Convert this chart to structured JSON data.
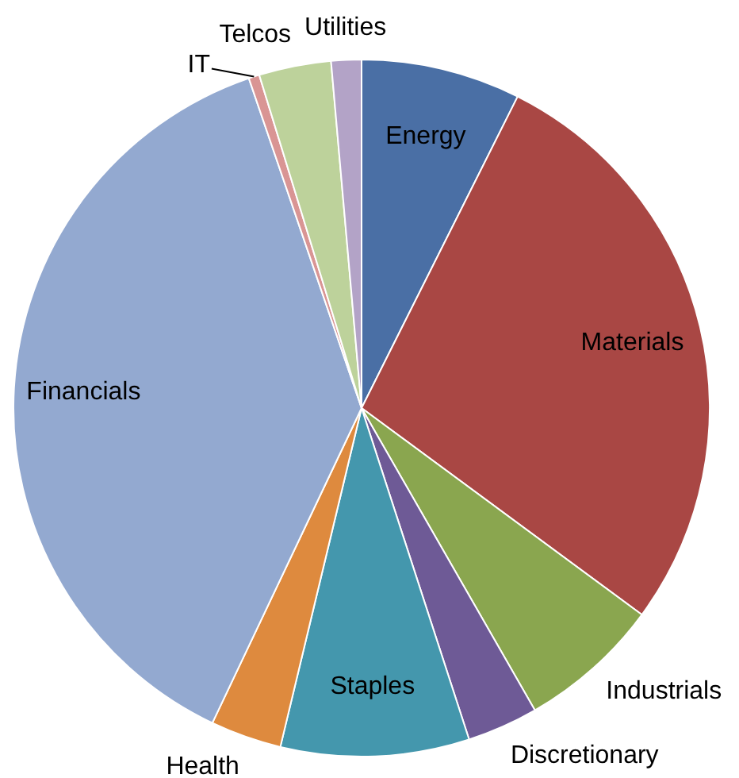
{
  "chart_data": {
    "type": "pie",
    "categories": [
      "Energy",
      "Materials",
      "Industrials",
      "Discretionary",
      "Staples",
      "Health",
      "Financials",
      "IT",
      "Telcos",
      "Utilities"
    ],
    "values": [
      7.4,
      27.7,
      6.6,
      3.3,
      8.75,
      3.3,
      37.7,
      0.5,
      3.35,
      1.4
    ],
    "colors": [
      "#4a6fa5",
      "#a94744",
      "#8aa64f",
      "#6e5a96",
      "#4497ad",
      "#de8a3e",
      "#93a9d0",
      "#d99594",
      "#bdd29b",
      "#b3a3c7"
    ],
    "legend": false
  }
}
